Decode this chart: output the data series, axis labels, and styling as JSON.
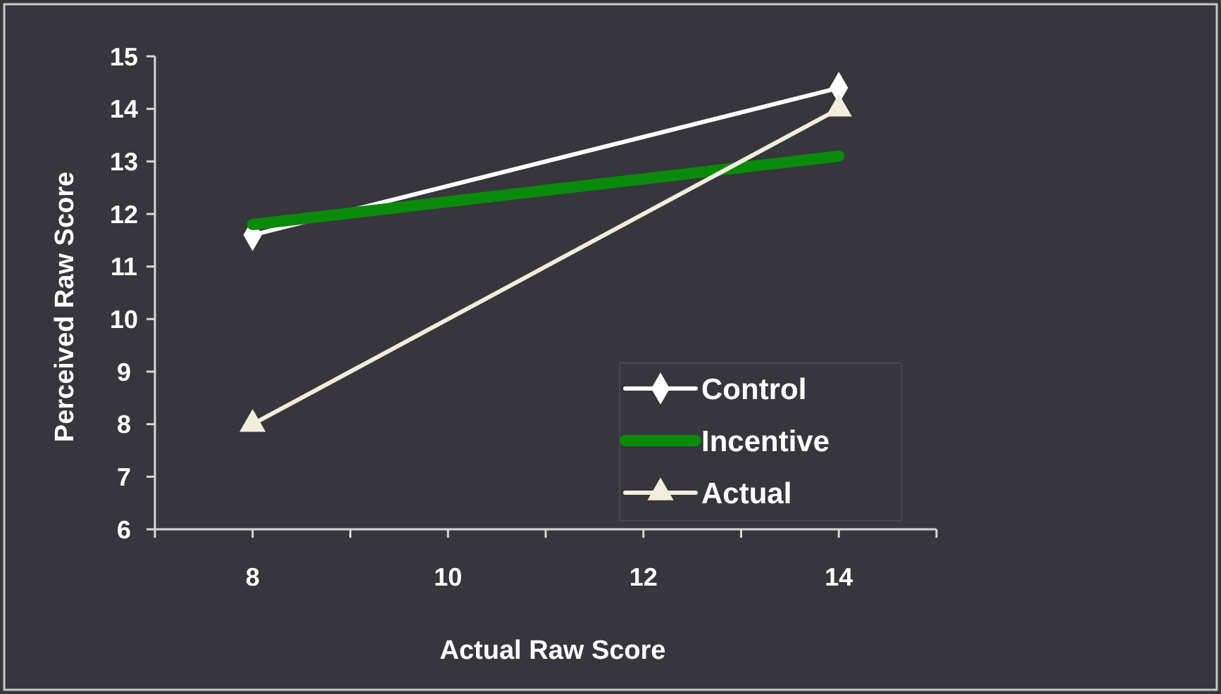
{
  "chart_data": {
    "type": "line",
    "xlabel": "Actual Raw Score",
    "ylabel": "Perceived Raw Score",
    "x": [
      8,
      14
    ],
    "xlim": [
      7,
      15
    ],
    "xticks": [
      {
        "value": 7,
        "label": null
      },
      8,
      {
        "value": 9,
        "label": null
      },
      10,
      {
        "value": 11,
        "label": null
      },
      12,
      {
        "value": 13,
        "label": null
      },
      14,
      {
        "value": 15,
        "label": null
      }
    ],
    "ylim": [
      6,
      15
    ],
    "yticks": [
      6,
      7,
      8,
      9,
      10,
      11,
      12,
      13,
      14,
      15
    ],
    "grid": false,
    "legend": "bottom right",
    "series": [
      {
        "name": "Control",
        "color": "#ffffff",
        "marker": "diamond",
        "values": [
          11.6,
          14.4
        ]
      },
      {
        "name": "Incentive",
        "color": "#0a8a0a",
        "marker": "none",
        "values": [
          11.8,
          13.1
        ]
      },
      {
        "name": "Actual",
        "color": "#f0eedc",
        "marker": "triangle",
        "values": [
          8,
          14
        ]
      }
    ]
  }
}
